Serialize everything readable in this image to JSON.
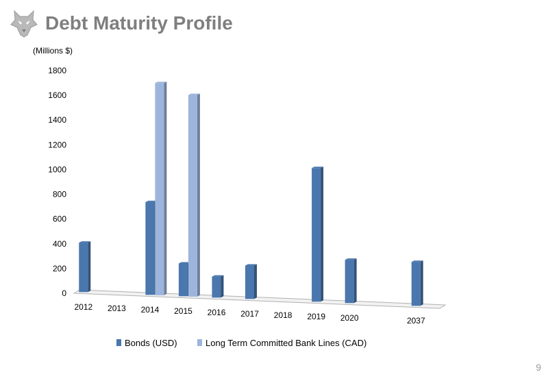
{
  "slide": {
    "title": "Debt Maturity Profile",
    "page_number": "9",
    "logo_icon": "husky-head-icon"
  },
  "chart_data": {
    "type": "bar",
    "unit_label": "(Millions $)",
    "categories": [
      "2012",
      "2013",
      "2014",
      "2015",
      "2016",
      "2017",
      "2018",
      "2019",
      "2020",
      "",
      "2037"
    ],
    "series": [
      {
        "name": "Bonds (USD)",
        "color": "#4a77ad",
        "values": [
          400,
          0,
          750,
          265,
          170,
          270,
          0,
          1080,
          350,
          0,
          355
        ]
      },
      {
        "name": "Long Term Committed Bank Lines (CAD)",
        "color": "#9db5dd",
        "values": [
          0,
          0,
          1715,
          1630,
          0,
          0,
          0,
          0,
          0,
          0,
          0
        ]
      }
    ],
    "ylim": [
      0,
      1800
    ],
    "yticks": [
      0,
      200,
      400,
      600,
      800,
      1000,
      1200,
      1400,
      1600,
      1800
    ],
    "grid": false,
    "legend": "bottom"
  }
}
